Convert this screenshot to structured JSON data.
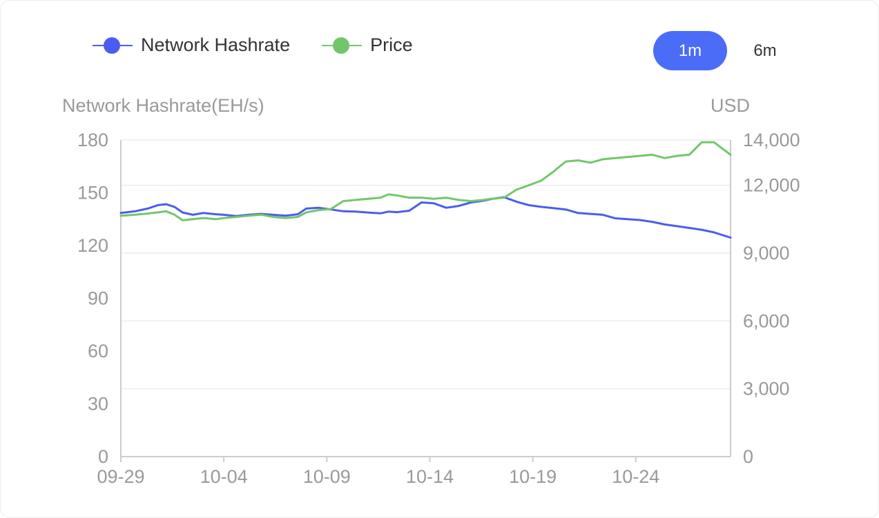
{
  "legend": {
    "items": [
      {
        "label": "Network Hashrate",
        "color": "#4a5cf2"
      },
      {
        "label": "Price",
        "color": "#72c66a"
      }
    ]
  },
  "range_toggle": {
    "options": [
      "1m",
      "6m"
    ],
    "active": "1m",
    "active_color": "#4a6cf7"
  },
  "chart_data": {
    "type": "line",
    "y_left_label": "Network Hashrate(EH/s)",
    "y_right_label": "USD",
    "y_left_range": [
      0,
      180
    ],
    "y_left_ticks": [
      "0",
      "30",
      "60",
      "90",
      "120",
      "150",
      "180"
    ],
    "y_right_range": [
      0,
      14000
    ],
    "y_right_ticks": [
      "0",
      "3,000",
      "6,000",
      "9,000",
      "12,000",
      "14,000"
    ],
    "x_ticks": [
      "09-29",
      "10-04",
      "10-09",
      "10-14",
      "10-19",
      "10-24"
    ],
    "x_range_days": [
      0,
      29.6
    ],
    "grid": "horizontal",
    "series": [
      {
        "name": "Network Hashrate",
        "axis": "left",
        "color": "#4a5cf2",
        "x": [
          0,
          0.7,
          1.3,
          1.8,
          2.2,
          2.6,
          3.0,
          3.5,
          4.0,
          4.6,
          5.0,
          5.6,
          6.2,
          6.8,
          7.4,
          8.0,
          8.6,
          9.0,
          9.6,
          10.2,
          10.8,
          11.4,
          12.0,
          12.6,
          13.0,
          13.4,
          14.0,
          14.6,
          15.2,
          15.8,
          16.4,
          17.0,
          17.6,
          18.0,
          18.6,
          19.2,
          19.8,
          20.4,
          21.0,
          21.6,
          22.2,
          22.8,
          23.4,
          24.0,
          24.6,
          25.2,
          25.8,
          26.4,
          27.0,
          27.6,
          28.2,
          28.8,
          29.6
        ],
        "y": [
          138.5,
          139.5,
          141,
          143,
          143.5,
          142,
          138.8,
          137.5,
          138.5,
          137.8,
          137.5,
          136.8,
          137.5,
          138,
          137.5,
          137,
          137.8,
          141,
          141.5,
          140.5,
          139.5,
          139.3,
          138.8,
          138.3,
          139.3,
          139,
          139.8,
          144.5,
          144,
          141.5,
          142.5,
          144.5,
          145.5,
          146.5,
          147.5,
          145,
          143,
          142,
          141.3,
          140.5,
          138.5,
          138,
          137.5,
          135.5,
          135,
          134.5,
          133.5,
          132,
          131,
          130,
          129,
          127.5,
          124.5
        ]
      },
      {
        "name": "Price",
        "axis": "right",
        "color": "#72c66a",
        "x": [
          0,
          0.7,
          1.3,
          1.8,
          2.2,
          2.6,
          3.0,
          3.5,
          4.0,
          4.6,
          5.0,
          5.6,
          6.2,
          6.8,
          7.4,
          8.0,
          8.6,
          9.0,
          9.6,
          10.2,
          10.8,
          11.4,
          12.0,
          12.6,
          13.0,
          13.4,
          14.0,
          14.6,
          15.2,
          15.8,
          16.4,
          17.0,
          17.6,
          18.0,
          18.6,
          19.2,
          19.8,
          20.4,
          21.0,
          21.6,
          22.2,
          22.8,
          23.4,
          24.0,
          24.6,
          25.2,
          25.8,
          26.4,
          27.0,
          27.6,
          28.2,
          28.8,
          29.6
        ],
        "y": [
          10650,
          10700,
          10750,
          10800,
          10850,
          10700,
          10450,
          10500,
          10550,
          10500,
          10550,
          10600,
          10650,
          10700,
          10600,
          10550,
          10600,
          10800,
          10900,
          10950,
          11300,
          11350,
          11400,
          11450,
          11600,
          11550,
          11450,
          11450,
          11400,
          11450,
          11350,
          11300,
          11350,
          11400,
          11450,
          11800,
          12000,
          12200,
          12600,
          13050,
          13100,
          13000,
          13150,
          13200,
          13250,
          13300,
          13350,
          13200,
          13300,
          13350,
          13900,
          13900,
          13350
        ]
      }
    ]
  }
}
